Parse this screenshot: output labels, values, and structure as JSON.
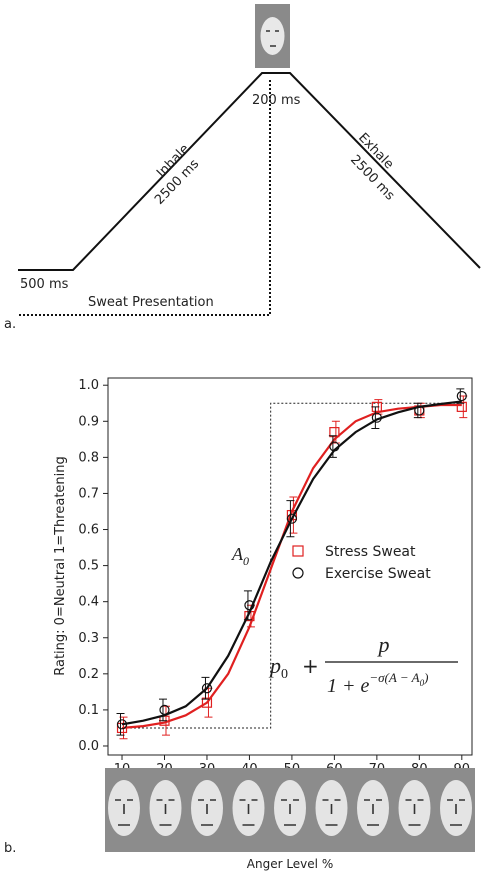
{
  "diagram": {
    "short_left": "500 ms",
    "inhale": "Inhale",
    "inhale_time": "2500 ms",
    "peak": "200 ms",
    "exhale": "Exhale",
    "exhale_time": "2500 ms",
    "sweat": "Sweat Presentation",
    "panel_label": "a."
  },
  "panel_b_label": "b.",
  "chart_data": {
    "type": "scatter",
    "xlabel": "Anger Level %",
    "ylabel": "Rating: 0=Neutral   1=Threatening",
    "x": [
      10,
      20,
      30,
      40,
      50,
      60,
      70,
      80,
      90
    ],
    "series": [
      {
        "name": "Stress Sweat",
        "color": "#e02020",
        "marker": "square",
        "values": [
          0.05,
          0.07,
          0.12,
          0.36,
          0.64,
          0.87,
          0.94,
          0.93,
          0.94
        ],
        "errors": [
          0.03,
          0.04,
          0.04,
          0.03,
          0.05,
          0.03,
          0.02,
          0.02,
          0.03
        ],
        "fit_values": [
          0.05,
          0.055,
          0.065,
          0.085,
          0.12,
          0.2,
          0.33,
          0.49,
          0.65,
          0.77,
          0.85,
          0.9,
          0.925,
          0.935,
          0.94,
          0.945,
          0.945
        ]
      },
      {
        "name": "Exercise Sweat",
        "color": "#111111",
        "marker": "circle",
        "values": [
          0.06,
          0.1,
          0.16,
          0.39,
          0.63,
          0.83,
          0.91,
          0.93,
          0.97
        ],
        "errors": [
          0.03,
          0.03,
          0.03,
          0.04,
          0.05,
          0.03,
          0.03,
          0.02,
          0.02
        ],
        "fit_values": [
          0.06,
          0.07,
          0.085,
          0.11,
          0.16,
          0.25,
          0.37,
          0.51,
          0.63,
          0.74,
          0.82,
          0.87,
          0.905,
          0.925,
          0.94,
          0.948,
          0.955
        ]
      }
    ],
    "fit_x": [
      10,
      15,
      20,
      25,
      30,
      35,
      40,
      45,
      50,
      55,
      60,
      65,
      70,
      75,
      80,
      85,
      90
    ],
    "step": {
      "x": [
        10,
        45,
        45,
        90
      ],
      "values": [
        0.05,
        0.05,
        0.95,
        0.95
      ]
    },
    "annotation": {
      "text": "A",
      "sub": "0"
    },
    "formula": {
      "base": "p",
      "base_sub": "0",
      "plus": "+",
      "numerator": "p",
      "denominator": "1 + e",
      "exponent": "−σ(A − A",
      "exponent_sub": "0",
      "exponent_end": ")"
    },
    "xlim": [
      6.7,
      92.4
    ],
    "ylim": [
      -0.025,
      1.02
    ],
    "xticks": [
      10,
      20,
      30,
      40,
      50,
      60,
      70,
      80,
      90
    ],
    "yticks": [
      {
        "value": 0,
        "label": "0.0"
      },
      0.1,
      0.2,
      0.3,
      0.4,
      0.5,
      0.6,
      0.7,
      0.8,
      0.9,
      {
        "value": 1,
        "label": "1.0"
      }
    ]
  }
}
